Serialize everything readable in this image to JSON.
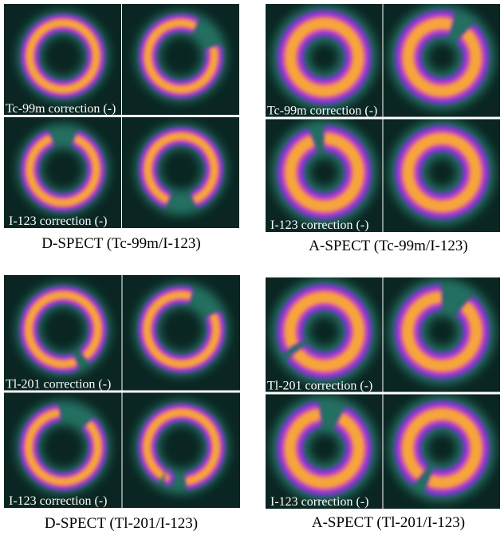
{
  "panels": [
    {
      "top_label": "Tc-99m  correction (-)",
      "bottom_label": "I-123  correction (-)",
      "caption": "D-SPECT (Tc-99m/I-123)"
    },
    {
      "top_label": "Tc-99m  correction (-)",
      "bottom_label": "I-123  correction (-)",
      "caption": "A-SPECT (Tc-99m/I-123)"
    },
    {
      "top_label": "Tl-201  correction (-)",
      "bottom_label": "I-123  correction (-)",
      "caption": "D-SPECT (Tl-201/I-123)"
    },
    {
      "top_label": "Tl-201  correction (-)",
      "bottom_label": "I-123  correction (-)",
      "caption": "A-SPECT (Tl-201/I-123)"
    }
  ]
}
